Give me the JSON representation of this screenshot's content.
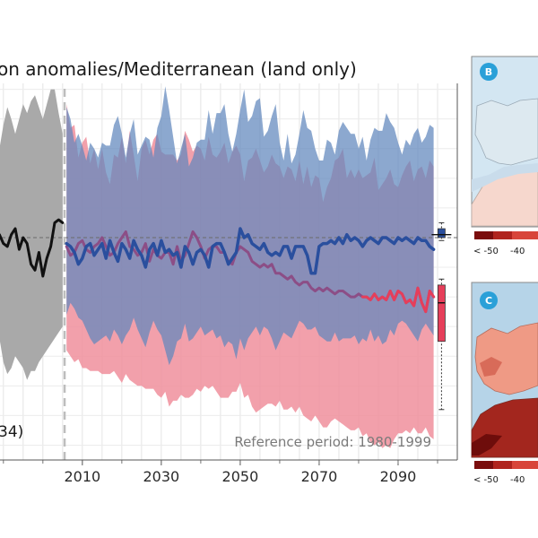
{
  "chart_data": [
    {
      "type": "line",
      "title": "on anomalies/Mediterranean (land only)",
      "annotation": "Reference period: 1980-1999",
      "partial_label": "34)",
      "xlim": [
        1988,
        2105
      ],
      "ylim": [
        -75,
        52
      ],
      "x_ticks": [
        "2010",
        "2030",
        "2050",
        "2070",
        "2090"
      ],
      "x_tick_values": [
        2010,
        2030,
        2050,
        2070,
        2090
      ],
      "grid": true,
      "legend": "none",
      "divider_year": 2005.5,
      "colors": {
        "historical": "#111111",
        "historical_range": "#a9a9a9",
        "blue": "#2a4f9e",
        "blue_range": "#5f87bd",
        "red": "#e63e5a",
        "red_range": "#f08f9c",
        "purple": "#8c4e86"
      },
      "series": [
        {
          "x": [
            1989,
            1990,
            1991,
            1992,
            1993,
            1994,
            1995,
            1996,
            1997,
            1998,
            1999,
            2000,
            2001,
            2002,
            2003,
            2004,
            2005
          ],
          "values": [
            1,
            -2,
            -3,
            1,
            3,
            -4,
            0,
            -2,
            -9,
            -11,
            -5,
            -13,
            -7,
            -3,
            5,
            6,
            5
          ],
          "upper": [
            30,
            38,
            44,
            40,
            35,
            40,
            45,
            42,
            46,
            48,
            44,
            40,
            45,
            50,
            50,
            42,
            35
          ],
          "lower": [
            -34,
            -42,
            -46,
            -44,
            -40,
            -42,
            -44,
            -48,
            -45,
            -45,
            -42,
            -40,
            -38,
            -36,
            -34,
            -32,
            -30
          ]
        },
        {
          "x": [
            2006,
            2007,
            2008,
            2009,
            2010,
            2011,
            2012,
            2013,
            2014,
            2015,
            2016,
            2017,
            2018,
            2019,
            2020,
            2021,
            2022,
            2023,
            2024,
            2025,
            2026,
            2027,
            2028,
            2029,
            2030,
            2031,
            2032,
            2033,
            2034,
            2035,
            2036,
            2037,
            2038,
            2039,
            2040,
            2041,
            2042,
            2043,
            2044,
            2045,
            2046,
            2047,
            2048,
            2049,
            2050,
            2051,
            2052,
            2053,
            2054,
            2055,
            2056,
            2057,
            2058,
            2059,
            2060,
            2061,
            2062,
            2063,
            2064,
            2065,
            2066,
            2067,
            2068,
            2069,
            2070,
            2071,
            2072,
            2073,
            2074,
            2075,
            2076,
            2077,
            2078,
            2079,
            2080,
            2081,
            2082,
            2083,
            2084,
            2085,
            2086,
            2087,
            2088,
            2089,
            2090,
            2091,
            2092,
            2093,
            2094,
            2095,
            2096,
            2097,
            2098,
            2099
          ],
          "values": [
            -3,
            -6,
            -5,
            -2,
            -1,
            -4,
            -5,
            -3,
            -2,
            0,
            -3,
            -6,
            -5,
            -2,
            0,
            2,
            -3,
            -4,
            -6,
            -5,
            -2,
            -8,
            -4,
            -6,
            -7,
            -5,
            -5,
            -9,
            -3,
            -8,
            -6,
            -2,
            2,
            0,
            -3,
            -7,
            -4,
            -3,
            -3,
            -5,
            -5,
            -8,
            -9,
            -5,
            -3,
            -4,
            -5,
            -8,
            -9,
            -10,
            -9,
            -10,
            -9,
            -12,
            -12,
            -13,
            -14,
            -13,
            -15,
            -16,
            -15,
            -15,
            -17,
            -18,
            -17,
            -18,
            -17,
            -18,
            -19,
            -18,
            -18,
            -19,
            -20,
            -20,
            -19,
            -20,
            -20,
            -21,
            -19,
            -21,
            -20,
            -21,
            -18,
            -21,
            -18,
            -19,
            -22,
            -21,
            -23,
            -17,
            -22,
            -25,
            -18,
            -20
          ],
          "upper": [
            45,
            37,
            38,
            27,
            32,
            34,
            25,
            30,
            23,
            30,
            22,
            18,
            28,
            27,
            34,
            25,
            36,
            28,
            19,
            30,
            33,
            28,
            33,
            35,
            29,
            28,
            28,
            28,
            26,
            28,
            36,
            33,
            29,
            31,
            30,
            26,
            34,
            28,
            27,
            29,
            32,
            25,
            29,
            31,
            28,
            19,
            26,
            27,
            30,
            26,
            22,
            24,
            28,
            25,
            24,
            20,
            24,
            23,
            19,
            26,
            18,
            24,
            17,
            21,
            20,
            12,
            17,
            20,
            26,
            27,
            30,
            20,
            23,
            20,
            23,
            20,
            21,
            22,
            27,
            16,
            18,
            20,
            23,
            18,
            17,
            21,
            24,
            26,
            19,
            23,
            24,
            20,
            26,
            24
          ],
          "lower": [
            -38,
            -40,
            -42,
            -41,
            -44,
            -44,
            -45,
            -45,
            -45,
            -46,
            -46,
            -46,
            -45,
            -47,
            -49,
            -46,
            -48,
            -49,
            -50,
            -50,
            -51,
            -51,
            -51,
            -53,
            -54,
            -52,
            -57,
            -55,
            -55,
            -53,
            -54,
            -54,
            -53,
            -51,
            -52,
            -50,
            -51,
            -50,
            -52,
            -54,
            -54,
            -54,
            -52,
            -52,
            -49,
            -54,
            -53,
            -57,
            -59,
            -58,
            -57,
            -56,
            -56,
            -57,
            -55,
            -58,
            -58,
            -57,
            -59,
            -57,
            -60,
            -61,
            -62,
            -60,
            -62,
            -64,
            -64,
            -62,
            -61,
            -62,
            -63,
            -64,
            -65,
            -65,
            -64,
            -67,
            -66,
            -69,
            -70,
            -69,
            -71,
            -70,
            -71,
            -68,
            -66,
            -66,
            -65,
            -66,
            -64,
            -66,
            -66,
            -64,
            -67,
            -68
          ]
        },
        {
          "x": [
            2006,
            2007,
            2008,
            2009,
            2010,
            2011,
            2012,
            2013,
            2014,
            2015,
            2016,
            2017,
            2018,
            2019,
            2020,
            2021,
            2022,
            2023,
            2024,
            2025,
            2026,
            2027,
            2028,
            2029,
            2030,
            2031,
            2032,
            2033,
            2034,
            2035,
            2036,
            2037,
            2038,
            2039,
            2040,
            2041,
            2042,
            2043,
            2044,
            2045,
            2046,
            2047,
            2048,
            2049,
            2050,
            2051,
            2052,
            2053,
            2054,
            2055,
            2056,
            2057,
            2058,
            2059,
            2060,
            2061,
            2062,
            2063,
            2064,
            2065,
            2066,
            2067,
            2068,
            2069,
            2070,
            2071,
            2072,
            2073,
            2074,
            2075,
            2076,
            2077,
            2078,
            2079,
            2080,
            2081,
            2082,
            2083,
            2084,
            2085,
            2086,
            2087,
            2088,
            2089,
            2090,
            2091,
            2092,
            2093,
            2094,
            2095,
            2096,
            2097,
            2098,
            2099
          ],
          "values": [
            -2,
            -3,
            -5,
            -9,
            -7,
            -3,
            -2,
            -6,
            -4,
            -2,
            -7,
            -1,
            -5,
            -8,
            -2,
            -4,
            -7,
            -1,
            -4,
            -6,
            -10,
            -4,
            -2,
            -6,
            -1,
            -5,
            -4,
            -6,
            -5,
            -10,
            -3,
            -5,
            -9,
            -5,
            -4,
            -6,
            -10,
            -3,
            -2,
            -2,
            -5,
            -9,
            -7,
            -5,
            3,
            0,
            1,
            -2,
            -3,
            -4,
            -2,
            -5,
            -6,
            -5,
            -6,
            -3,
            -3,
            -7,
            -3,
            -3,
            -3,
            -6,
            -12,
            -12,
            -3,
            -2,
            -2,
            -1,
            -2,
            0,
            -2,
            1,
            -1,
            0,
            -1,
            -3,
            -1,
            0,
            -1,
            -2,
            0,
            0,
            -1,
            -2,
            0,
            -1,
            0,
            -1,
            -2,
            0,
            -1,
            -1,
            -3,
            -4
          ],
          "upper": [
            44,
            40,
            32,
            35,
            31,
            26,
            32,
            30,
            27,
            32,
            31,
            31,
            38,
            41,
            35,
            27,
            35,
            40,
            28,
            31,
            34,
            33,
            27,
            37,
            41,
            51,
            43,
            34,
            25,
            30,
            35,
            24,
            27,
            32,
            33,
            33,
            43,
            35,
            42,
            42,
            45,
            35,
            29,
            35,
            43,
            50,
            39,
            41,
            46,
            47,
            34,
            36,
            41,
            45,
            32,
            26,
            35,
            25,
            28,
            35,
            43,
            37,
            36,
            30,
            26,
            26,
            33,
            32,
            28,
            36,
            39,
            37,
            35,
            35,
            30,
            34,
            26,
            33,
            37,
            36,
            36,
            42,
            39,
            37,
            32,
            28,
            33,
            31,
            35,
            37,
            32,
            34,
            38,
            37
          ],
          "lower": [
            -26,
            -22,
            -24,
            -27,
            -28,
            -31,
            -34,
            -36,
            -35,
            -34,
            -33,
            -35,
            -31,
            -33,
            -36,
            -33,
            -31,
            -27,
            -31,
            -34,
            -37,
            -32,
            -28,
            -31,
            -33,
            -38,
            -43,
            -40,
            -35,
            -34,
            -29,
            -35,
            -34,
            -32,
            -30,
            -33,
            -32,
            -31,
            -34,
            -33,
            -37,
            -35,
            -36,
            -41,
            -34,
            -38,
            -34,
            -32,
            -30,
            -33,
            -30,
            -31,
            -34,
            -38,
            -35,
            -32,
            -33,
            -34,
            -31,
            -28,
            -29,
            -31,
            -31,
            -30,
            -33,
            -34,
            -35,
            -35,
            -32,
            -35,
            -34,
            -34,
            -34,
            -33,
            -36,
            -34,
            -35,
            -31,
            -35,
            -33,
            -36,
            -35,
            -31,
            -33,
            -29,
            -28,
            -29,
            -31,
            -33,
            -35,
            -31,
            -29,
            -31,
            -33
          ]
        }
      ],
      "red_highlight": {
        "x": [
          2081,
          2082,
          2083,
          2084,
          2085,
          2086,
          2087,
          2088,
          2089,
          2090,
          2091,
          2092,
          2093,
          2094,
          2095,
          2096,
          2097,
          2098,
          2099
        ],
        "values": [
          -20,
          -20,
          -21,
          -19,
          -21,
          -20,
          -21,
          -18,
          -21,
          -18,
          -19,
          -22,
          -21,
          -23,
          -17,
          -22,
          -25,
          -18,
          -20
        ]
      },
      "boxplots": [
        {
          "x": 2101,
          "whisker_low": -1,
          "q1": 0,
          "median": 1,
          "q3": 3,
          "whisker_high": 5,
          "mean": 1,
          "color": "blue"
        },
        {
          "x": 2101,
          "whisker_low": -58,
          "q1": -35,
          "median": -22,
          "q3": -16,
          "whisker_high": -14,
          "mean": -20,
          "color": "red"
        }
      ]
    },
    {
      "type": "heatmap",
      "badge": "B",
      "colorbar_labels": [
        "< -50",
        "-40"
      ]
    },
    {
      "type": "heatmap",
      "badge": "C",
      "colorbar_labels": [
        "< -50",
        "-40"
      ]
    }
  ]
}
